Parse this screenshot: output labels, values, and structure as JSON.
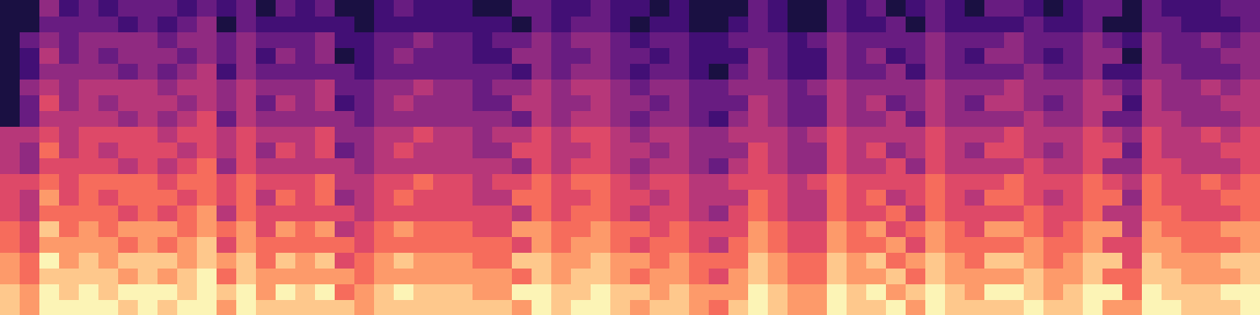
{
  "chart_data": {
    "type": "heatmap",
    "color": "magma",
    "tick_labels": false,
    "cells": [
      [
        8,
        7,
        9,
        9,
        9,
        9,
        8,
        9,
        8,
        9,
        9,
        7,
        9,
        8,
        8,
        8,
        8,
        8,
        7,
        8,
        8,
        8,
        8,
        8,
        8,
        8,
        7,
        9,
        8,
        9,
        9,
        8,
        7,
        8,
        8,
        7,
        6,
        8,
        9,
        8,
        7,
        7,
        9,
        8,
        8,
        9,
        7,
        9,
        8,
        8,
        8,
        8,
        9,
        8,
        8,
        9,
        7,
        7,
        9,
        9,
        8,
        8,
        8,
        9
      ],
      [
        8,
        7,
        9,
        8,
        9,
        8,
        9,
        9,
        9,
        8,
        9,
        8,
        9,
        7,
        9,
        8,
        9,
        6,
        7,
        8,
        9,
        8,
        8,
        8,
        7,
        7,
        9,
        9,
        8,
        8,
        9,
        8,
        8,
        7,
        8,
        7,
        7,
        7,
        9,
        8,
        7,
        7,
        9,
        8,
        9,
        7,
        8,
        9,
        8,
        7,
        9,
        9,
        8,
        7,
        8,
        9,
        9,
        6,
        9,
        8,
        8,
        8,
        9,
        9
      ],
      [
        7,
        6,
        8,
        8,
        8,
        8,
        7,
        8,
        7,
        8,
        9,
        6,
        8,
        7,
        7,
        7,
        7,
        7,
        6,
        7,
        7,
        7,
        7,
        7,
        7,
        7,
        6,
        8,
        7,
        8,
        8,
        7,
        6,
        7,
        7,
        6,
        5,
        7,
        8,
        7,
        6,
        6,
        8,
        7,
        7,
        8,
        6,
        8,
        7,
        7,
        7,
        7,
        8,
        7,
        7,
        8,
        6,
        6,
        8,
        8,
        7,
        7,
        7,
        8
      ],
      [
        7,
        6,
        9,
        7,
        8,
        7,
        8,
        8,
        8,
        7,
        8,
        7,
        8,
        6,
        8,
        7,
        8,
        5,
        6,
        7,
        8,
        7,
        7,
        7,
        6,
        6,
        8,
        8,
        7,
        7,
        8,
        7,
        7,
        6,
        7,
        6,
        6,
        6,
        8,
        7,
        6,
        6,
        8,
        7,
        8,
        6,
        7,
        8,
        7,
        6,
        8,
        8,
        7,
        6,
        7,
        8,
        8,
        5,
        8,
        7,
        7,
        7,
        8,
        8
      ],
      [
        6,
        5,
        7,
        7,
        7,
        7,
        6,
        7,
        6,
        7,
        8,
        5,
        7,
        6,
        6,
        6,
        6,
        6,
        5,
        6,
        6,
        6,
        6,
        6,
        6,
        6,
        5,
        7,
        6,
        7,
        7,
        6,
        5,
        6,
        6,
        5,
        4,
        6,
        7,
        6,
        5,
        5,
        7,
        6,
        6,
        7,
        5,
        7,
        6,
        6,
        6,
        6,
        7,
        6,
        6,
        7,
        5,
        5,
        7,
        7,
        6,
        6,
        6,
        7
      ],
      [
        6,
        5,
        8,
        6,
        7,
        6,
        7,
        7,
        7,
        6,
        7,
        6,
        7,
        5,
        7,
        6,
        7,
        4,
        5,
        6,
        7,
        6,
        6,
        6,
        5,
        5,
        7,
        7,
        6,
        6,
        7,
        6,
        6,
        5,
        6,
        5,
        5,
        5,
        7,
        6,
        5,
        5,
        7,
        6,
        7,
        5,
        6,
        7,
        6,
        5,
        7,
        7,
        6,
        5,
        6,
        7,
        7,
        4,
        7,
        6,
        6,
        6,
        7,
        7
      ],
      [
        5,
        4,
        6,
        6,
        6,
        6,
        5,
        6,
        5,
        6,
        7,
        4,
        6,
        5,
        5,
        5,
        5,
        5,
        4,
        5,
        5,
        5,
        5,
        5,
        5,
        5,
        4,
        6,
        5,
        6,
        6,
        5,
        4,
        5,
        5,
        4,
        3,
        5,
        6,
        5,
        4,
        4,
        6,
        5,
        5,
        6,
        4,
        6,
        5,
        5,
        5,
        5,
        6,
        5,
        5,
        6,
        4,
        4,
        6,
        6,
        5,
        5,
        5,
        6
      ],
      [
        5,
        4,
        7,
        5,
        6,
        5,
        6,
        6,
        6,
        5,
        6,
        5,
        6,
        4,
        6,
        5,
        6,
        3,
        4,
        5,
        6,
        5,
        5,
        5,
        4,
        4,
        6,
        6,
        5,
        5,
        6,
        5,
        5,
        4,
        5,
        4,
        4,
        4,
        6,
        5,
        4,
        4,
        6,
        5,
        6,
        4,
        5,
        6,
        5,
        4,
        6,
        6,
        5,
        4,
        5,
        6,
        6,
        3,
        6,
        5,
        5,
        5,
        6,
        6
      ],
      [
        5,
        5,
        6,
        5,
        6,
        6,
        6,
        6,
        5,
        6,
        6,
        5,
        6,
        5,
        5,
        5,
        6,
        4,
        4,
        5,
        5,
        6,
        5,
        5,
        4,
        5,
        5,
        6,
        5,
        6,
        6,
        5,
        4,
        5,
        5,
        4,
        4,
        5,
        5,
        5,
        4,
        5,
        6,
        5,
        5,
        5,
        5,
        6,
        5,
        5,
        5,
        6,
        5,
        5,
        5,
        6,
        5,
        4,
        6,
        5,
        5,
        6,
        5,
        6
      ],
      [
        4,
        3,
        5,
        5,
        5,
        5,
        4,
        5,
        4,
        5,
        6,
        3,
        5,
        4,
        4,
        4,
        4,
        4,
        3,
        4,
        4,
        4,
        4,
        4,
        4,
        4,
        3,
        5,
        4,
        5,
        5,
        4,
        3,
        4,
        4,
        3,
        2,
        4,
        5,
        4,
        3,
        3,
        5,
        4,
        4,
        5,
        3,
        5,
        4,
        4,
        4,
        4,
        5,
        4,
        4,
        5,
        3,
        3,
        5,
        5,
        4,
        4,
        4,
        5
      ],
      [
        4,
        3,
        6,
        4,
        5,
        4,
        5,
        5,
        5,
        4,
        5,
        4,
        5,
        3,
        5,
        4,
        5,
        2,
        3,
        4,
        5,
        4,
        4,
        4,
        3,
        3,
        5,
        5,
        4,
        4,
        5,
        4,
        4,
        3,
        4,
        3,
        3,
        3,
        5,
        4,
        3,
        3,
        5,
        4,
        5,
        3,
        4,
        5,
        4,
        3,
        5,
        5,
        4,
        3,
        4,
        5,
        5,
        2,
        5,
        4,
        4,
        4,
        5,
        5
      ],
      [
        4,
        4,
        5,
        4,
        5,
        5,
        5,
        5,
        4,
        5,
        5,
        4,
        5,
        4,
        4,
        4,
        5,
        3,
        3,
        4,
        4,
        5,
        4,
        4,
        3,
        4,
        4,
        5,
        4,
        5,
        5,
        4,
        3,
        4,
        4,
        3,
        3,
        4,
        4,
        4,
        3,
        4,
        5,
        4,
        4,
        4,
        4,
        5,
        4,
        4,
        4,
        5,
        4,
        4,
        4,
        5,
        4,
        3,
        5,
        4,
        4,
        5,
        4,
        5
      ],
      [
        0,
        2,
        4,
        4,
        4,
        4,
        3,
        4,
        3,
        4,
        5,
        2,
        4,
        3,
        3,
        3,
        3,
        3,
        2,
        3,
        3,
        3,
        3,
        3,
        3,
        3,
        2,
        4,
        3,
        4,
        4,
        3,
        2,
        3,
        3,
        2,
        1,
        3,
        4,
        3,
        2,
        2,
        4,
        3,
        3,
        4,
        2,
        4,
        3,
        3,
        3,
        3,
        4,
        3,
        3,
        4,
        2,
        2,
        4,
        4,
        3,
        3,
        3,
        4
      ],
      [
        0,
        2,
        5,
        3,
        4,
        3,
        4,
        4,
        4,
        3,
        4,
        3,
        4,
        2,
        4,
        3,
        4,
        1,
        2,
        3,
        4,
        3,
        3,
        3,
        2,
        2,
        4,
        4,
        3,
        3,
        4,
        3,
        3,
        2,
        3,
        2,
        2,
        2,
        4,
        3,
        2,
        2,
        4,
        3,
        4,
        2,
        3,
        4,
        3,
        2,
        4,
        4,
        3,
        2,
        3,
        4,
        4,
        1,
        4,
        3,
        3,
        3,
        4,
        4
      ],
      [
        0,
        3,
        4,
        3,
        4,
        4,
        4,
        4,
        3,
        4,
        4,
        3,
        4,
        3,
        3,
        3,
        4,
        2,
        2,
        3,
        3,
        4,
        3,
        3,
        2,
        3,
        3,
        4,
        3,
        4,
        4,
        3,
        2,
        3,
        3,
        2,
        2,
        3,
        3,
        3,
        2,
        3,
        4,
        3,
        3,
        3,
        3,
        4,
        3,
        3,
        3,
        4,
        3,
        3,
        3,
        4,
        3,
        2,
        4,
        3,
        3,
        4,
        3,
        4
      ],
      [
        0,
        1,
        3,
        3,
        3,
        3,
        2,
        3,
        2,
        3,
        4,
        1,
        3,
        2,
        2,
        2,
        2,
        2,
        1,
        2,
        2,
        2,
        2,
        2,
        2,
        2,
        1,
        3,
        2,
        3,
        3,
        2,
        1,
        2,
        2,
        1,
        0,
        2,
        3,
        2,
        1,
        1,
        3,
        2,
        2,
        3,
        1,
        3,
        2,
        2,
        2,
        2,
        3,
        2,
        2,
        3,
        1,
        1,
        3,
        3,
        2,
        2,
        2,
        3
      ],
      [
        0,
        1,
        4,
        2,
        3,
        2,
        3,
        3,
        3,
        2,
        3,
        2,
        3,
        1,
        3,
        2,
        3,
        0,
        1,
        2,
        3,
        2,
        2,
        2,
        1,
        1,
        3,
        3,
        2,
        2,
        3,
        2,
        2,
        1,
        2,
        1,
        1,
        1,
        3,
        2,
        1,
        1,
        3,
        2,
        3,
        1,
        2,
        3,
        2,
        1,
        3,
        3,
        2,
        1,
        2,
        3,
        3,
        0,
        3,
        2,
        2,
        2,
        3,
        3
      ],
      [
        0,
        2,
        3,
        2,
        3,
        3,
        3,
        3,
        2,
        3,
        3,
        2,
        3,
        2,
        2,
        2,
        3,
        1,
        1,
        2,
        2,
        3,
        2,
        2,
        1,
        2,
        2,
        3,
        2,
        3,
        3,
        2,
        1,
        2,
        2,
        1,
        1,
        2,
        2,
        2,
        1,
        2,
        3,
        2,
        2,
        2,
        2,
        3,
        2,
        2,
        2,
        3,
        2,
        2,
        2,
        3,
        2,
        1,
        3,
        2,
        2,
        3,
        2,
        3
      ],
      [
        0,
        0,
        2,
        2,
        2,
        2,
        1,
        2,
        1,
        2,
        3,
        0,
        2,
        1,
        1,
        1,
        1,
        1,
        0,
        1,
        1,
        1,
        1,
        1,
        1,
        1,
        0,
        2,
        1,
        2,
        2,
        1,
        0,
        1,
        1,
        0,
        0,
        1,
        2,
        1,
        0,
        0,
        2,
        1,
        1,
        2,
        0,
        2,
        1,
        1,
        1,
        1,
        2,
        1,
        1,
        2,
        0,
        0,
        2,
        2,
        1,
        1,
        1,
        2
      ],
      [
        0,
        0,
        3,
        1,
        2,
        1,
        2,
        2,
        2,
        1,
        2,
        1,
        2,
        0,
        2,
        1,
        2,
        0,
        0,
        1,
        2,
        1,
        1,
        1,
        0,
        0,
        2,
        2,
        1,
        1,
        2,
        1,
        1,
        0,
        1,
        0,
        0,
        0,
        2,
        1,
        0,
        0,
        2,
        1,
        2,
        0,
        1,
        2,
        1,
        0,
        2,
        2,
        1,
        0,
        1,
        2,
        2,
        0,
        2,
        1,
        1,
        1,
        2,
        2
      ]
    ]
  }
}
